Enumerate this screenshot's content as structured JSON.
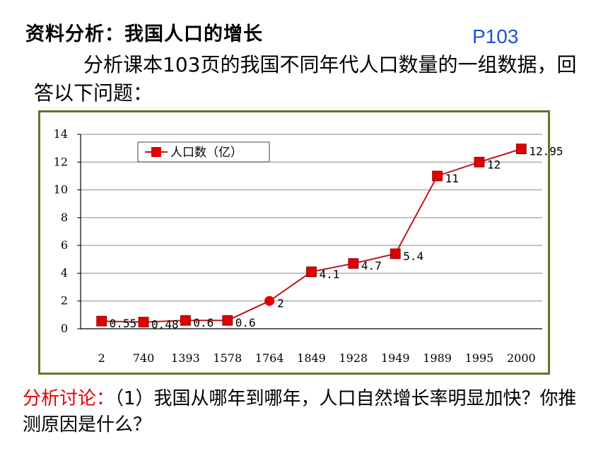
{
  "header": {
    "title": "资料分析：我国人口的增长",
    "page_ref": "P103"
  },
  "intro_text": "分析课本103页的我国不同年代人口数量的一组数据，回答以下问题：",
  "chart_data": {
    "type": "line",
    "categories": [
      "2",
      "740",
      "1393",
      "1578",
      "1764",
      "1849",
      "1928",
      "1949",
      "1989",
      "1995",
      "2000"
    ],
    "series": [
      {
        "name": "人口数（亿）",
        "values": [
          0.55,
          0.48,
          0.6,
          0.6,
          2,
          4.1,
          4.7,
          5.4,
          11,
          12,
          12.95
        ],
        "labels": [
          "0.55",
          "0.48",
          "0.6",
          "0.6",
          "2",
          "4.1",
          "4.7",
          "5.4",
          "11",
          "12",
          "12.95"
        ],
        "color": "#c0141c",
        "marker_color": "#e00000"
      }
    ],
    "ylim": [
      0,
      14
    ],
    "yticks": [
      "0",
      "2",
      "4",
      "6",
      "8",
      "10",
      "12",
      "14"
    ],
    "grid": true,
    "legend": "top-left",
    "frame_color": "#6e6e2c"
  },
  "discussion": {
    "lead": "分析讨论：",
    "text": "（1）我国从哪年到哪年，人口自然增长率明显加快？你推测原因是什么？"
  }
}
